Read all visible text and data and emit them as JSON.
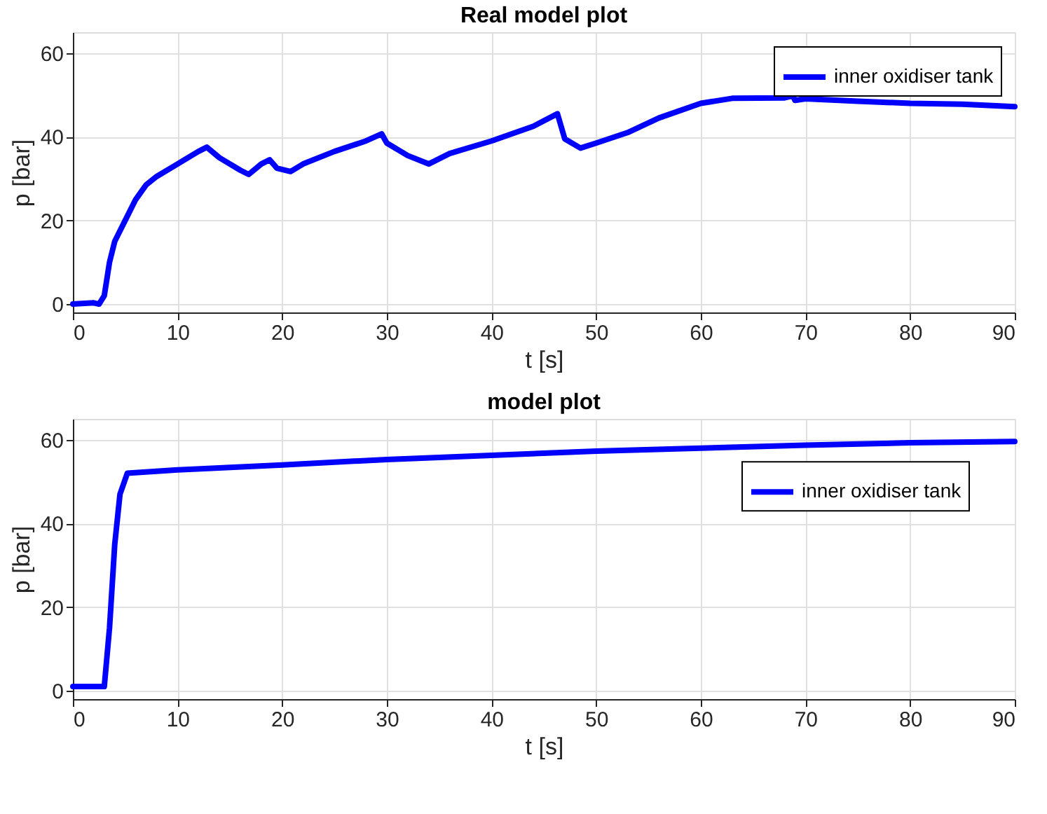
{
  "chart_data": [
    {
      "type": "line",
      "title": "Real model plot",
      "xlabel": "t [s]",
      "ylabel": "p [bar]",
      "xlim": [
        0,
        90
      ],
      "ylim": [
        -2,
        65
      ],
      "xticks": [
        0,
        10,
        20,
        30,
        40,
        50,
        60,
        70,
        80,
        90
      ],
      "yticks": [
        0,
        20,
        40,
        60
      ],
      "grid": true,
      "legend": "top right",
      "line_style": "solid",
      "series": [
        {
          "name": "inner oxidiser tank",
          "color": "#0000ff",
          "x": [
            0,
            2,
            2.5,
            3,
            3.5,
            4,
            5,
            6,
            7,
            8,
            10,
            12,
            12.8,
            14,
            16,
            16.8,
            18,
            18.8,
            19.5,
            20.8,
            22,
            25,
            28,
            29.5,
            30,
            32,
            34,
            36,
            40,
            44,
            46.3,
            47,
            48.5,
            50,
            53,
            56,
            60,
            63,
            68,
            68.8,
            69,
            70,
            75,
            80,
            85,
            90
          ],
          "values": [
            0,
            0.3,
            0,
            2,
            10,
            15,
            20,
            25,
            28.5,
            30.5,
            33.5,
            36.5,
            37.5,
            35,
            32,
            31,
            33.5,
            34.5,
            32.5,
            31.7,
            33.5,
            36.5,
            39,
            40.7,
            38.5,
            35.5,
            33.5,
            36,
            39,
            42.5,
            45.5,
            39.5,
            37.3,
            38.5,
            41,
            44.5,
            48,
            49.2,
            49.3,
            49.8,
            48.7,
            49.1,
            48.5,
            48,
            47.8,
            47.2
          ]
        }
      ]
    },
    {
      "type": "line",
      "title": "model plot",
      "xlabel": "t [s]",
      "ylabel": "p [bar]",
      "xlim": [
        0,
        90
      ],
      "ylim": [
        -2,
        65
      ],
      "xticks": [
        0,
        10,
        20,
        30,
        40,
        50,
        60,
        70,
        80,
        90
      ],
      "yticks": [
        0,
        20,
        40,
        60
      ],
      "grid": true,
      "legend": "top right",
      "line_style": "solid",
      "series": [
        {
          "name": "inner oxidiser tank",
          "color": "#0000ff",
          "x": [
            0,
            3,
            3.5,
            4,
            4.5,
            5.2,
            10,
            20,
            30,
            40,
            50,
            60,
            70,
            80,
            90
          ],
          "values": [
            1,
            1,
            15,
            35,
            47,
            52,
            52.8,
            54,
            55.3,
            56.3,
            57.3,
            58,
            58.7,
            59.3,
            59.6
          ]
        }
      ]
    }
  ]
}
